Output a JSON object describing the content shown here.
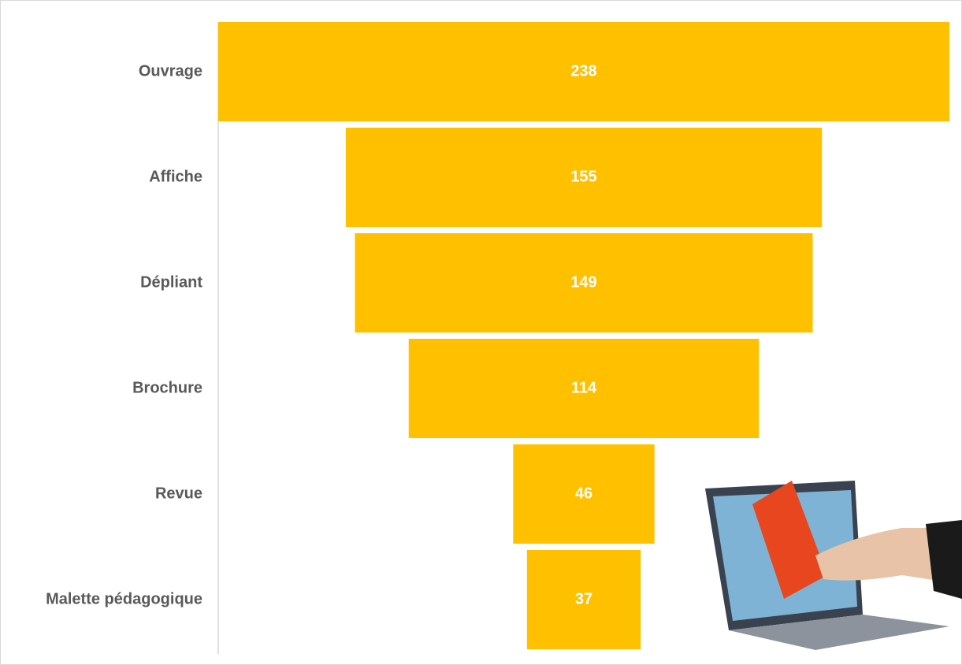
{
  "chart_data": {
    "type": "funnel",
    "categories": [
      "Ouvrage",
      "Affiche",
      "Dépliant",
      "Brochure",
      "Revue",
      "Malette pédagogique"
    ],
    "values": [
      238,
      155,
      149,
      114,
      46,
      37
    ],
    "color": "#ffc000"
  }
}
